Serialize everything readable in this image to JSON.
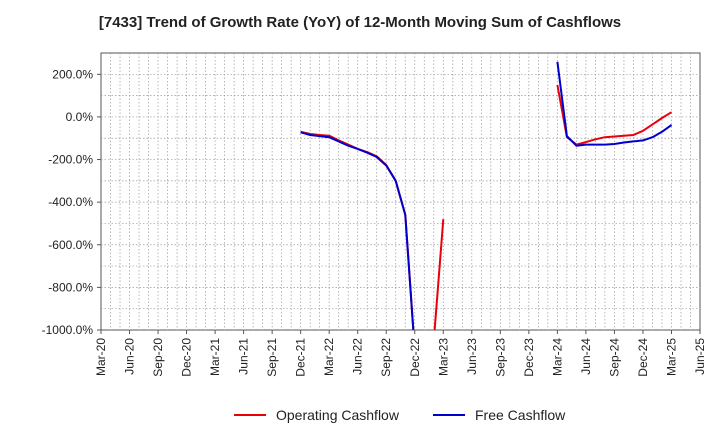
{
  "chart_data": {
    "type": "line",
    "title": "[7433]  Trend of Growth Rate (YoY) of 12-Month Moving Sum of Cashflows",
    "xlabel": "",
    "ylabel": "",
    "ylim": [
      -1000,
      300
    ],
    "y_ticks": [
      200,
      0,
      -200,
      -400,
      -600,
      -800,
      -1000
    ],
    "y_tick_labels": [
      "200.0%",
      "0.0%",
      "-200.0%",
      "-400.0%",
      "-600.0%",
      "-800.0%",
      "-1000.0%"
    ],
    "x_ticks": [
      "Mar-20",
      "Jun-20",
      "Sep-20",
      "Dec-20",
      "Mar-21",
      "Jun-21",
      "Sep-21",
      "Dec-21",
      "Mar-22",
      "Jun-22",
      "Sep-22",
      "Dec-22",
      "Mar-23",
      "Jun-23",
      "Sep-23",
      "Dec-23",
      "Mar-24",
      "Jun-24",
      "Sep-24",
      "Dec-24",
      "Mar-25",
      "Jun-25"
    ],
    "x_range": [
      "Mar-20",
      "Jun-25"
    ],
    "grid": true,
    "legend_position": "bottom",
    "series": [
      {
        "name": "Operating Cashflow",
        "color": "#e8000b",
        "segments": [
          [
            [
              "Dec-21",
              -70
            ],
            [
              "Jan-22",
              -80
            ],
            [
              "Feb-22",
              -85
            ],
            [
              "Mar-22",
              -88
            ],
            [
              "Apr-22",
              -110
            ],
            [
              "May-22",
              -130
            ],
            [
              "Jun-22",
              -150
            ],
            [
              "Jul-22",
              -165
            ],
            [
              "Aug-22",
              -185
            ],
            [
              "Sep-22",
              -225
            ],
            [
              "Oct-22",
              -300
            ],
            [
              "Nov-22",
              -460
            ],
            [
              "Dec-22",
              -1100
            ]
          ],
          [
            [
              "Feb-23",
              -1050
            ],
            [
              "Mar-23",
              -480
            ]
          ],
          [
            [
              "Mar-24",
              150
            ],
            [
              "Apr-24",
              -95
            ],
            [
              "May-24",
              -130
            ],
            [
              "Jun-24",
              -118
            ],
            [
              "Jul-24",
              -105
            ],
            [
              "Aug-24",
              -95
            ],
            [
              "Sep-24",
              -92
            ],
            [
              "Oct-24",
              -88
            ],
            [
              "Nov-24",
              -85
            ],
            [
              "Dec-24",
              -65
            ],
            [
              "Jan-25",
              -35
            ],
            [
              "Feb-25",
              -5
            ],
            [
              "Mar-25",
              22
            ]
          ]
        ]
      },
      {
        "name": "Free Cashflow",
        "color": "#0000cc",
        "segments": [
          [
            [
              "Dec-21",
              -72
            ],
            [
              "Jan-22",
              -85
            ],
            [
              "Feb-22",
              -90
            ],
            [
              "Mar-22",
              -95
            ],
            [
              "Apr-22",
              -115
            ],
            [
              "May-22",
              -135
            ],
            [
              "Jun-22",
              -150
            ],
            [
              "Jul-22",
              -168
            ],
            [
              "Aug-22",
              -188
            ],
            [
              "Sep-22",
              -228
            ],
            [
              "Oct-22",
              -300
            ],
            [
              "Nov-22",
              -460
            ],
            [
              "Dec-22",
              -1100
            ]
          ],
          [
            [
              "Mar-24",
              258
            ],
            [
              "Apr-24",
              -90
            ],
            [
              "May-24",
              -135
            ],
            [
              "Jun-24",
              -130
            ],
            [
              "Jul-24",
              -130
            ],
            [
              "Aug-24",
              -130
            ],
            [
              "Sep-24",
              -127
            ],
            [
              "Oct-24",
              -120
            ],
            [
              "Nov-24",
              -115
            ],
            [
              "Dec-24",
              -110
            ],
            [
              "Jan-25",
              -95
            ],
            [
              "Feb-25",
              -70
            ],
            [
              "Mar-25",
              -38
            ]
          ]
        ]
      }
    ]
  }
}
